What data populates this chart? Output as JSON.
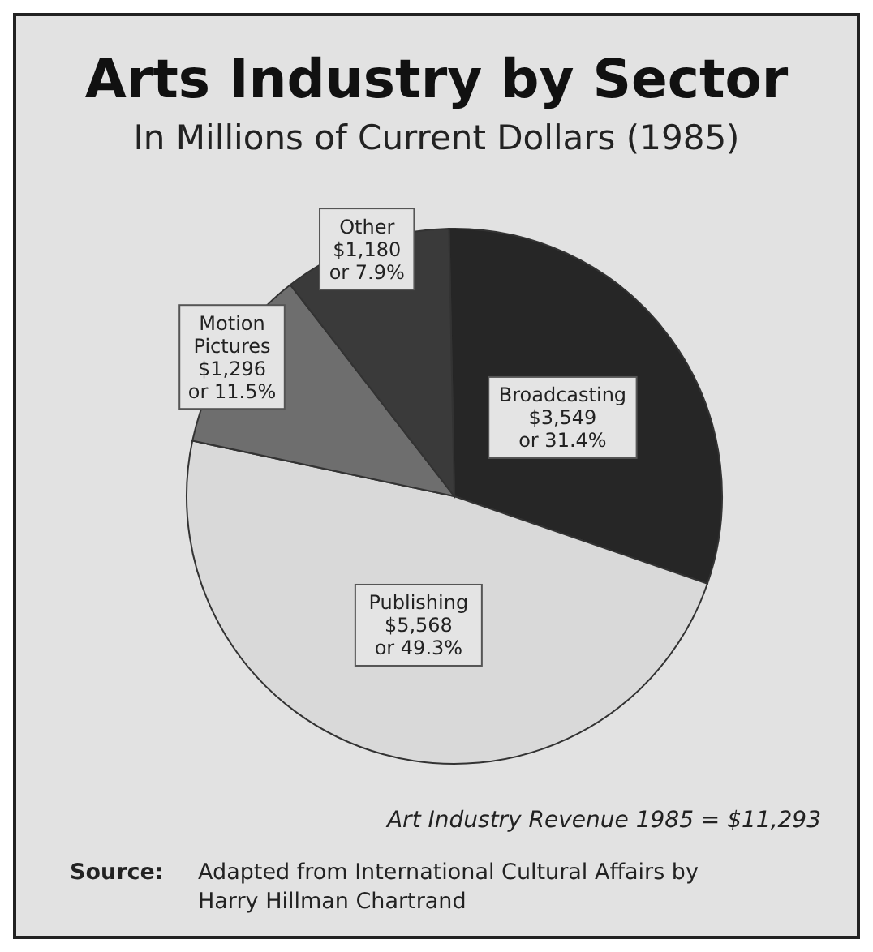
{
  "chart_data": {
    "type": "pie",
    "title": "Arts Industry by Sector",
    "subtitle": "In Millions of Current Dollars (1985)",
    "categories": [
      "Broadcasting",
      "Publishing",
      "Motion Pictures",
      "Other"
    ],
    "values": [
      3549,
      5568,
      1296,
      1180
    ],
    "colors": [
      "#262626",
      "#d9d9d9",
      "#6e6e6e",
      "#3a3a3a"
    ],
    "value_labels": [
      "$3,549\nor 31.4%",
      "$5,568\nor 49.3%",
      "$1,296\nor 11.5%",
      "$1,180\nor 7.9%"
    ],
    "annotations": [
      "Art Industry Revenue 1985 = $11,293",
      "Source: Adapted from International Cultural Affairs by Harry Hillman Chartrand"
    ],
    "legend": false
  }
}
